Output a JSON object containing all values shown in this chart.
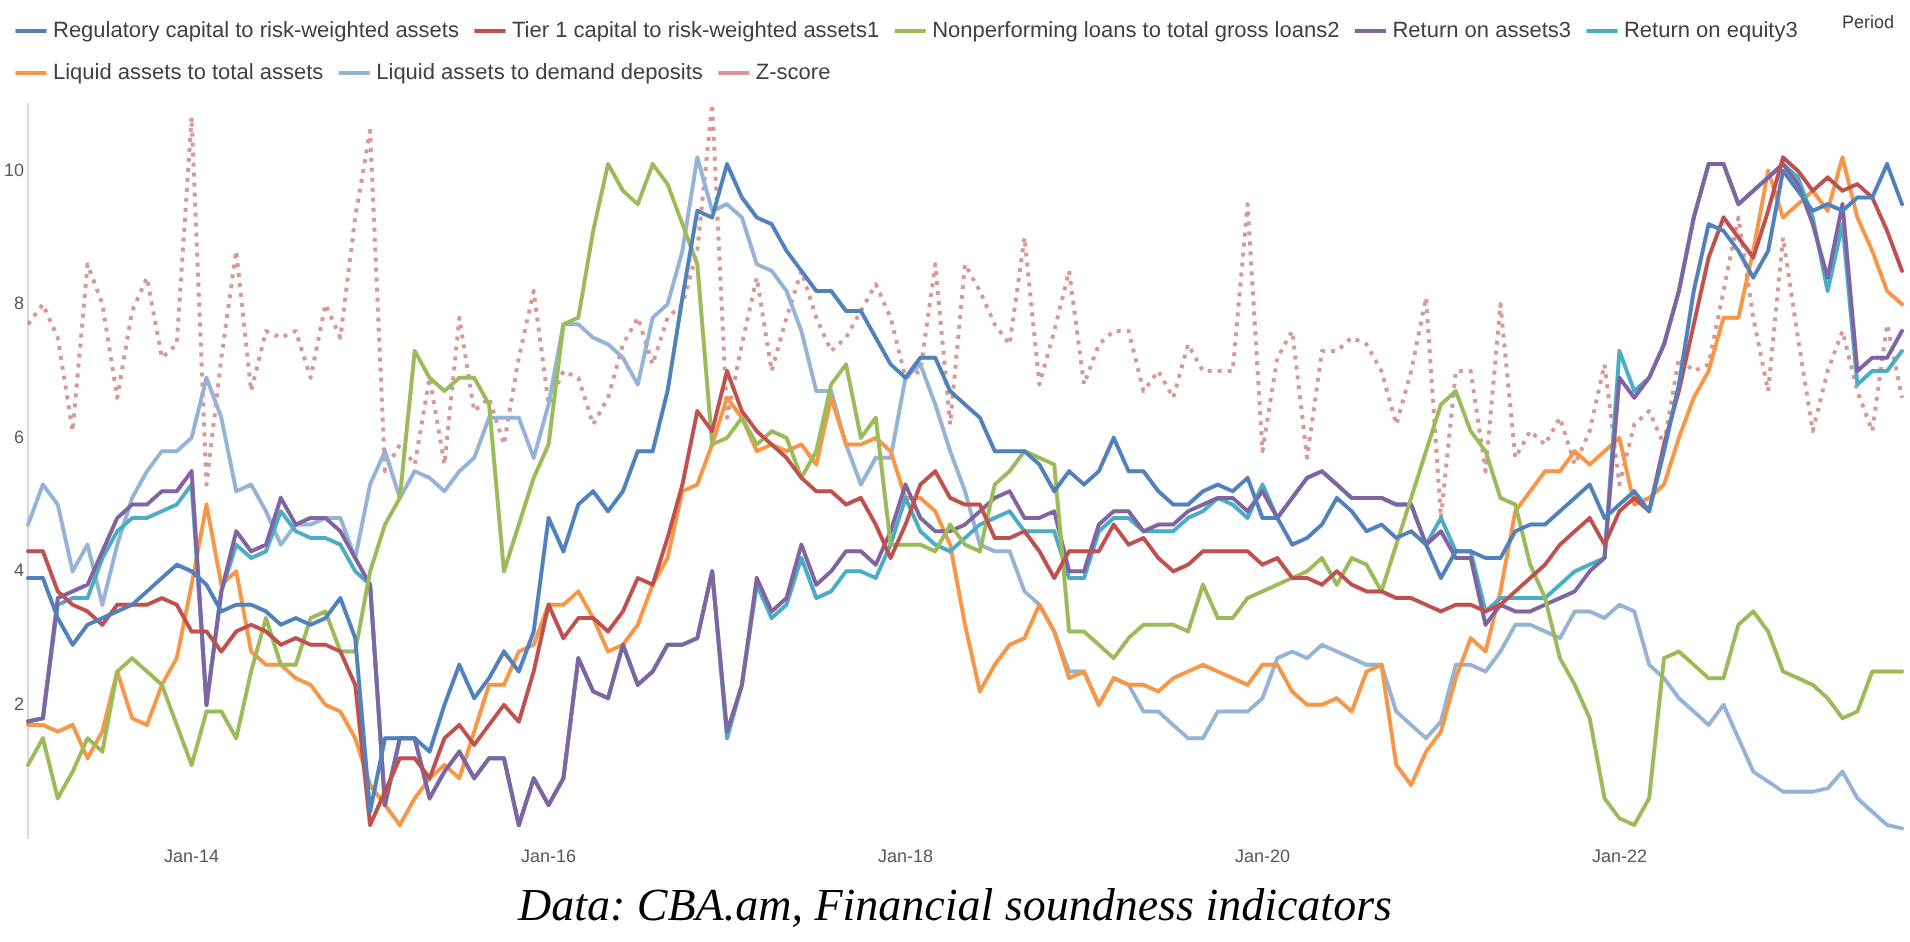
{
  "chart_data": {
    "type": "line",
    "xlabel": "Period",
    "annotations": [
      "Data: CBA.am, Financial soundness indicators"
    ],
    "categories": [
      null,
      null,
      null,
      null,
      null,
      null,
      null,
      null,
      null,
      null,
      null,
      "Jan-14",
      null,
      null,
      null,
      null,
      null,
      null,
      null,
      null,
      null,
      null,
      null,
      null,
      null,
      null,
      null,
      null,
      null,
      null,
      null,
      null,
      null,
      null,
      null,
      "Jan-16",
      null,
      null,
      null,
      null,
      null,
      null,
      null,
      null,
      null,
      null,
      null,
      null,
      null,
      null,
      null,
      null,
      null,
      null,
      null,
      null,
      null,
      null,
      null,
      "Jan-18",
      null,
      null,
      null,
      null,
      null,
      null,
      null,
      null,
      null,
      null,
      null,
      null,
      null,
      null,
      null,
      null,
      null,
      null,
      null,
      null,
      null,
      null,
      null,
      "Jan-20",
      null,
      null,
      null,
      null,
      null,
      null,
      null,
      null,
      null,
      null,
      null,
      null,
      null,
      null,
      null,
      null,
      null,
      null,
      null,
      null,
      null,
      null,
      null,
      "Jan-22",
      null,
      null,
      null,
      null,
      null,
      null,
      null,
      null,
      null,
      null,
      null,
      null,
      null,
      null,
      null,
      null,
      null,
      null,
      null
    ],
    "ylim": [
      0,
      11
    ],
    "yticks": [
      2,
      4,
      6,
      8,
      10
    ],
    "grid": false,
    "legend": "top",
    "marker": "none",
    "line_style": "solid",
    "series": [
      {
        "name": "Regulatory capital to risk-weighted assets",
        "color": "#4f81bd",
        "values": [
          3.9,
          3.9,
          3.3,
          2.9,
          3.2,
          3.3,
          3.4,
          3.5,
          3.7,
          3.9,
          4.1,
          4.0,
          3.8,
          3.4,
          3.5,
          3.5,
          3.4,
          3.2,
          3.3,
          3.2,
          3.3,
          3.6,
          3.0,
          0.4,
          1.5,
          1.5,
          1.5,
          1.3,
          2.0,
          2.6,
          2.1,
          2.4,
          2.8,
          2.5,
          3.1,
          4.8,
          4.3,
          5.0,
          5.2,
          4.9,
          5.2,
          5.8,
          5.8,
          6.7,
          8.1,
          9.4,
          9.3,
          10.1,
          9.6,
          9.3,
          9.2,
          8.8,
          8.5,
          8.2,
          8.2,
          7.9,
          7.9,
          7.5,
          7.1,
          6.9,
          7.2,
          7.2,
          6.7,
          6.5,
          6.3,
          5.8,
          5.8,
          5.8,
          5.6,
          5.2,
          5.5,
          5.3,
          5.5,
          6.0,
          5.5,
          5.5,
          5.2,
          5.0,
          5.0,
          5.2,
          5.3,
          5.2,
          5.4,
          4.8,
          4.8,
          4.4,
          4.5,
          4.7,
          5.1,
          4.9,
          4.6,
          4.7,
          4.5,
          4.6,
          4.4,
          3.9,
          4.3,
          4.3,
          4.2,
          4.2,
          4.6,
          4.7,
          4.7,
          4.9,
          5.1,
          5.3,
          4.8,
          5.0,
          5.2,
          4.9,
          5.8,
          6.8,
          8.2,
          9.2,
          9.1,
          8.8,
          8.4,
          8.8,
          10.0,
          9.7,
          9.4,
          9.5,
          9.4,
          9.6,
          9.6,
          10.1,
          9.5
        ]
      },
      {
        "name": "Tier 1 capital to risk-weighted assets1",
        "color": "#c0504d",
        "values": [
          4.3,
          4.3,
          3.7,
          3.5,
          3.4,
          3.2,
          3.5,
          3.5,
          3.5,
          3.6,
          3.5,
          3.1,
          3.1,
          2.8,
          3.1,
          3.2,
          3.1,
          2.9,
          3.0,
          2.9,
          2.9,
          2.8,
          2.3,
          0.2,
          0.7,
          1.2,
          1.2,
          0.9,
          1.5,
          1.7,
          1.4,
          1.7,
          2.0,
          1.75,
          2.5,
          3.5,
          3.0,
          3.3,
          3.3,
          3.1,
          3.4,
          3.9,
          3.8,
          4.5,
          5.3,
          6.4,
          6.1,
          7.0,
          6.4,
          6.1,
          5.9,
          5.7,
          5.4,
          5.2,
          5.2,
          5.0,
          5.1,
          4.7,
          4.2,
          4.7,
          5.3,
          5.5,
          5.1,
          5.0,
          5.0,
          4.5,
          4.5,
          4.6,
          4.3,
          3.9,
          4.3,
          4.3,
          4.3,
          4.7,
          4.4,
          4.5,
          4.2,
          4.0,
          4.1,
          4.3,
          4.3,
          4.3,
          4.3,
          4.1,
          4.2,
          3.9,
          3.9,
          3.8,
          4.0,
          3.8,
          3.7,
          3.7,
          3.6,
          3.6,
          3.5,
          3.4,
          3.5,
          3.5,
          3.4,
          3.5,
          3.7,
          3.9,
          4.1,
          4.4,
          4.6,
          4.8,
          4.4,
          4.9,
          5.1,
          4.9,
          5.9,
          6.7,
          7.7,
          8.7,
          9.3,
          9.0,
          8.7,
          9.4,
          10.2,
          10.0,
          9.7,
          9.9,
          9.7,
          9.8,
          9.6,
          9.1,
          8.5
        ]
      },
      {
        "name": "Nonperforming loans to total gross loans2",
        "color": "#9bbb59",
        "values": [
          1.1,
          1.5,
          0.6,
          1.0,
          1.5,
          1.3,
          2.5,
          2.7,
          2.5,
          2.3,
          1.7,
          1.1,
          1.9,
          1.9,
          1.5,
          2.5,
          3.3,
          2.6,
          2.6,
          3.3,
          3.4,
          2.8,
          2.8,
          4.0,
          4.7,
          5.1,
          7.3,
          6.9,
          6.7,
          6.9,
          6.9,
          6.5,
          4.0,
          4.7,
          5.4,
          5.9,
          7.7,
          7.8,
          9.1,
          10.1,
          9.7,
          9.5,
          10.1,
          9.8,
          9.2,
          8.6,
          5.9,
          6.0,
          6.3,
          5.9,
          6.1,
          6.0,
          5.4,
          5.8,
          6.8,
          7.1,
          6.0,
          6.3,
          4.4,
          4.4,
          4.4,
          4.3,
          4.7,
          4.4,
          4.3,
          5.3,
          5.5,
          5.8,
          5.7,
          5.6,
          3.1,
          3.1,
          2.9,
          2.7,
          3.0,
          3.2,
          3.2,
          3.2,
          3.1,
          3.8,
          3.3,
          3.3,
          3.6,
          3.7,
          3.8,
          3.9,
          4.0,
          4.2,
          3.8,
          4.2,
          4.1,
          3.7,
          4.4,
          5.1,
          5.8,
          6.5,
          6.7,
          6.1,
          5.8,
          5.1,
          5.0,
          4.1,
          3.6,
          2.7,
          2.3,
          1.8,
          0.6,
          0.3,
          0.2,
          0.6,
          2.7,
          2.8,
          2.6,
          2.4,
          2.4,
          3.2,
          3.4,
          3.1,
          2.5,
          2.4,
          2.3,
          2.1,
          1.8,
          1.9,
          2.5,
          2.5,
          2.5
        ]
      },
      {
        "name": "Return on assets3",
        "color": "#8064a2",
        "values": [
          1.75,
          1.8,
          3.6,
          3.7,
          3.8,
          4.3,
          4.8,
          5.0,
          5.0,
          5.2,
          5.2,
          5.5,
          2.0,
          3.7,
          4.6,
          4.3,
          4.4,
          5.1,
          4.7,
          4.8,
          4.8,
          4.6,
          4.2,
          3.8,
          0.5,
          1.5,
          1.5,
          0.6,
          1.0,
          1.3,
          0.9,
          1.2,
          1.2,
          0.2,
          0.9,
          0.5,
          0.9,
          2.7,
          2.2,
          2.1,
          2.9,
          2.3,
          2.5,
          2.9,
          2.9,
          3.0,
          4.0,
          1.6,
          2.3,
          3.9,
          3.4,
          3.6,
          4.4,
          3.8,
          4.0,
          4.3,
          4.3,
          4.1,
          4.6,
          5.3,
          4.8,
          4.6,
          4.6,
          4.7,
          4.9,
          5.1,
          5.2,
          4.8,
          4.8,
          4.9,
          4.0,
          4.0,
          4.7,
          4.9,
          4.9,
          4.6,
          4.7,
          4.7,
          4.9,
          5.0,
          5.1,
          5.1,
          4.9,
          5.2,
          4.8,
          5.1,
          5.4,
          5.5,
          5.3,
          5.1,
          5.1,
          5.1,
          5.0,
          5.0,
          4.4,
          4.6,
          4.2,
          4.2,
          3.2,
          3.5,
          3.4,
          3.4,
          3.5,
          3.6,
          3.7,
          4.0,
          4.2,
          6.9,
          6.6,
          6.9,
          7.4,
          8.2,
          9.3,
          10.1,
          10.1,
          9.5,
          9.7,
          9.9,
          10.1,
          9.8,
          9.2,
          8.4,
          9.5,
          7.0,
          7.2,
          7.2,
          7.6
        ]
      },
      {
        "name": "Return on equity3",
        "color": "#4bacc6",
        "values": [
          1.75,
          1.8,
          3.5,
          3.6,
          3.6,
          4.2,
          4.6,
          4.8,
          4.8,
          4.9,
          5.0,
          5.3,
          2.0,
          3.7,
          4.4,
          4.2,
          4.3,
          4.9,
          4.6,
          4.5,
          4.5,
          4.4,
          4.0,
          3.8,
          0.5,
          1.5,
          1.5,
          0.6,
          1.0,
          1.3,
          0.9,
          1.2,
          1.2,
          0.2,
          0.9,
          0.5,
          0.9,
          2.7,
          2.2,
          2.1,
          2.9,
          2.3,
          2.5,
          2.9,
          2.9,
          3.0,
          4.0,
          1.5,
          2.3,
          3.8,
          3.3,
          3.5,
          4.2,
          3.6,
          3.7,
          4.0,
          4.0,
          3.9,
          4.4,
          5.1,
          4.6,
          4.4,
          4.3,
          4.5,
          4.7,
          4.8,
          4.9,
          4.6,
          4.6,
          4.6,
          3.9,
          3.9,
          4.6,
          4.8,
          4.8,
          4.6,
          4.6,
          4.6,
          4.8,
          4.9,
          5.1,
          5.0,
          4.8,
          5.3,
          4.8,
          5.1,
          5.4,
          5.5,
          5.3,
          5.1,
          5.1,
          5.1,
          5.0,
          5.0,
          4.4,
          4.8,
          4.3,
          4.3,
          3.4,
          3.6,
          3.6,
          3.6,
          3.6,
          3.8,
          4.0,
          4.1,
          4.2,
          7.3,
          6.7,
          6.9,
          7.4,
          8.2,
          9.3,
          10.1,
          10.1,
          9.5,
          9.7,
          9.9,
          10.1,
          9.9,
          9.3,
          8.2,
          9.2,
          6.8,
          7.0,
          7.0,
          7.3
        ]
      },
      {
        "name": "Liquid assets to total assets",
        "color": "#f79646",
        "values": [
          1.7,
          1.7,
          1.6,
          1.7,
          1.2,
          1.6,
          2.5,
          1.8,
          1.7,
          2.3,
          2.7,
          3.8,
          5.0,
          3.8,
          4.0,
          2.8,
          2.6,
          2.6,
          2.4,
          2.3,
          2.0,
          1.9,
          1.5,
          0.8,
          0.5,
          0.2,
          0.6,
          0.9,
          1.1,
          0.9,
          1.6,
          2.3,
          2.3,
          2.8,
          2.9,
          3.5,
          3.5,
          3.7,
          3.3,
          2.8,
          2.9,
          3.2,
          3.8,
          4.2,
          5.2,
          5.3,
          5.9,
          6.6,
          6.3,
          5.8,
          5.9,
          5.8,
          5.9,
          5.6,
          6.6,
          5.9,
          5.9,
          6.0,
          5.8,
          5.1,
          5.1,
          4.9,
          4.4,
          3.2,
          2.2,
          2.6,
          2.9,
          3.0,
          3.5,
          3.1,
          2.4,
          2.5,
          2.0,
          2.4,
          2.3,
          2.3,
          2.2,
          2.4,
          2.5,
          2.6,
          2.5,
          2.4,
          2.3,
          2.6,
          2.6,
          2.2,
          2.0,
          2.0,
          2.1,
          1.9,
          2.5,
          2.6,
          1.1,
          0.8,
          1.3,
          1.6,
          2.4,
          3.0,
          2.8,
          3.7,
          4.9,
          5.2,
          5.5,
          5.5,
          5.8,
          5.6,
          5.8,
          6.0,
          5.0,
          5.1,
          5.3,
          6.0,
          6.6,
          7.0,
          7.8,
          7.8,
          8.8,
          10.0,
          9.3,
          9.5,
          9.7,
          9.4,
          10.2,
          9.3,
          8.8,
          8.2,
          8.0
        ]
      },
      {
        "name": "Liquid assets to demand deposits",
        "color": "#95b3d7",
        "values": [
          4.7,
          5.3,
          5.0,
          4.0,
          4.4,
          3.5,
          4.4,
          5.1,
          5.5,
          5.8,
          5.8,
          6.0,
          6.9,
          6.3,
          5.2,
          5.3,
          4.9,
          4.4,
          4.7,
          4.7,
          4.8,
          4.8,
          4.2,
          5.3,
          5.8,
          5.1,
          5.5,
          5.4,
          5.2,
          5.5,
          5.7,
          6.3,
          6.3,
          6.3,
          5.7,
          6.5,
          7.7,
          7.7,
          7.5,
          7.4,
          7.2,
          6.8,
          7.8,
          8.0,
          8.8,
          10.2,
          9.4,
          9.5,
          9.3,
          8.6,
          8.5,
          8.2,
          7.6,
          6.7,
          6.7,
          5.9,
          5.3,
          5.7,
          5.7,
          6.9,
          7.1,
          6.5,
          5.8,
          5.2,
          4.4,
          4.3,
          4.3,
          3.7,
          3.5,
          3.1,
          2.5,
          2.5,
          2.0,
          2.4,
          2.3,
          1.9,
          1.9,
          1.7,
          1.5,
          1.5,
          1.9,
          1.9,
          1.9,
          2.1,
          2.7,
          2.8,
          2.7,
          2.9,
          2.8,
          2.7,
          2.6,
          2.6,
          1.9,
          1.7,
          1.5,
          1.75,
          2.6,
          2.6,
          2.5,
          2.8,
          3.2,
          3.2,
          3.1,
          3.0,
          3.4,
          3.4,
          3.3,
          3.5,
          3.4,
          2.6,
          2.4,
          2.1,
          1.9,
          1.7,
          2.0,
          1.5,
          1.0,
          0.85,
          0.7,
          0.7,
          0.7,
          0.75,
          1.0,
          0.6,
          0.4,
          0.2,
          0.15
        ]
      },
      {
        "name": "Z-score",
        "color": "#d99694",
        "line_style": "dotted",
        "values": [
          7.7,
          8.0,
          7.5,
          6.1,
          8.6,
          8.0,
          6.6,
          7.9,
          8.4,
          7.2,
          7.4,
          10.8,
          5.3,
          7.2,
          8.8,
          6.7,
          7.6,
          7.5,
          7.6,
          6.9,
          8.0,
          7.5,
          9.3,
          10.6,
          5.5,
          5.9,
          5.6,
          6.9,
          5.6,
          7.8,
          6.4,
          6.6,
          5.9,
          7.2,
          8.2,
          6.5,
          7.0,
          6.9,
          6.2,
          6.6,
          7.4,
          7.8,
          7.1,
          7.8,
          8.0,
          8.8,
          11.0,
          6.3,
          7.4,
          8.4,
          7.0,
          7.8,
          8.5,
          7.8,
          7.3,
          7.5,
          7.9,
          8.3,
          7.8,
          6.9,
          7.0,
          8.6,
          6.2,
          8.6,
          8.2,
          7.7,
          7.4,
          9.0,
          6.8,
          7.6,
          8.5,
          6.8,
          7.4,
          7.6,
          7.6,
          6.7,
          7.0,
          6.6,
          7.4,
          7.0,
          7.0,
          7.0,
          9.5,
          5.8,
          7.2,
          7.6,
          5.7,
          7.3,
          7.3,
          7.5,
          7.4,
          7.0,
          6.2,
          7.0,
          8.1,
          4.8,
          7.0,
          7.0,
          5.5,
          8.0,
          5.7,
          6.1,
          5.9,
          6.3,
          5.6,
          6.1,
          7.1,
          5.3,
          6.2,
          6.4,
          5.9,
          7.2,
          7.0,
          7.1,
          8.2,
          9.3,
          7.8,
          6.7,
          9.0,
          7.5,
          6.1,
          7.0,
          7.6,
          6.7,
          6.1,
          7.7,
          6.6
        ]
      }
    ]
  }
}
